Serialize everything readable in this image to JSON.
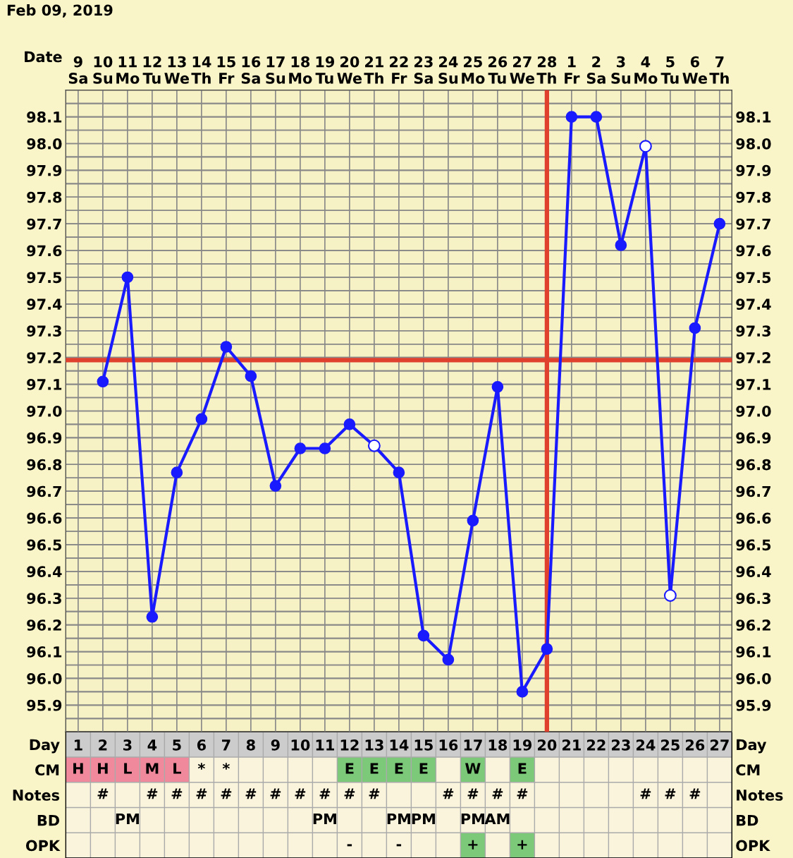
{
  "chart_data": [
    {
      "type": "line",
      "title": "Feb 09, 2019",
      "xlabel": "Date",
      "categories": [
        "9\nSa",
        "10\nSu",
        "11\nMo",
        "12\nTu",
        "13\nWe",
        "14\nTh",
        "15\nFr",
        "16\nSa",
        "17\nSu",
        "18\nMo",
        "19\nTu",
        "20\nWe",
        "21\nTh",
        "22\nFr",
        "23\nSa",
        "24\nSu",
        "25\nMo",
        "26\nTu",
        "27\nWe",
        "28\nTh",
        "1\nFr",
        "2\nSa",
        "3\nSu",
        "4\nMo",
        "5\nTu",
        "6\nWe",
        "7\nTh"
      ],
      "series": [
        {
          "type": "line",
          "color": "#1a1aff",
          "marker": "circle",
          "line_style": "solid",
          "values": [
            null,
            97.11,
            97.5,
            96.23,
            96.77,
            96.97,
            97.24,
            97.13,
            96.72,
            96.86,
            96.86,
            96.95,
            96.87,
            96.77,
            96.16,
            96.07,
            96.59,
            97.09,
            95.95,
            96.11,
            98.1,
            98.1,
            97.62,
            97.99,
            96.31,
            97.31,
            97.7
          ]
        },
        {
          "type": "scatter",
          "color": "#ffffff",
          "marker": "circle",
          "values": [
            null,
            null,
            null,
            null,
            null,
            null,
            null,
            null,
            null,
            null,
            null,
            null,
            96.87,
            null,
            null,
            null,
            null,
            null,
            null,
            null,
            null,
            null,
            null,
            97.99,
            96.31,
            null,
            null
          ]
        }
      ],
      "ylim": [
        95.8,
        98.2
      ],
      "yticks": [
        {
          "value": 95.85,
          "label": null
        },
        95.9,
        {
          "value": 95.95,
          "label": null
        },
        {
          "value": 96.0,
          "label": "96.0"
        },
        {
          "value": 96.05,
          "label": null
        },
        96.1,
        {
          "value": 96.15,
          "label": null
        },
        96.2,
        {
          "value": 96.25,
          "label": null
        },
        96.3,
        {
          "value": 96.35,
          "label": null
        },
        96.4,
        {
          "value": 96.45,
          "label": null
        },
        96.5,
        {
          "value": 96.55,
          "label": null
        },
        96.6,
        {
          "value": 96.65,
          "label": null
        },
        96.7,
        {
          "value": 96.75,
          "label": null
        },
        96.8,
        {
          "value": 96.85,
          "label": null
        },
        96.9,
        {
          "value": 96.95,
          "label": null
        },
        {
          "value": 97.0,
          "label": "97.0"
        },
        {
          "value": 97.05,
          "label": null
        },
        97.1,
        {
          "value": 97.15,
          "label": null
        },
        97.2,
        {
          "value": 97.25,
          "label": null
        },
        97.3,
        {
          "value": 97.35,
          "label": null
        },
        97.4,
        {
          "value": 97.45,
          "label": null
        },
        97.5,
        {
          "value": 97.55,
          "label": null
        },
        97.6,
        {
          "value": 97.65,
          "label": null
        },
        97.7,
        {
          "value": 97.75,
          "label": null
        },
        97.8,
        {
          "value": 97.85,
          "label": null
        },
        97.9,
        {
          "value": 97.95,
          "label": null
        },
        {
          "value": 98.0,
          "label": "98.0"
        },
        {
          "value": 98.05,
          "label": null
        },
        98.1,
        {
          "value": 98.15,
          "label": null
        }
      ],
      "y2lim": [
        95.8,
        98.2
      ],
      "y2ticks": [
        {
          "value": 95.85,
          "label": null
        },
        95.9,
        {
          "value": 95.95,
          "label": null
        },
        {
          "value": 96.0,
          "label": "96.0"
        },
        {
          "value": 96.05,
          "label": null
        },
        96.1,
        {
          "value": 96.15,
          "label": null
        },
        96.2,
        {
          "value": 96.25,
          "label": null
        },
        96.3,
        {
          "value": 96.35,
          "label": null
        },
        96.4,
        {
          "value": 96.45,
          "label": null
        },
        96.5,
        {
          "value": 96.55,
          "label": null
        },
        96.6,
        {
          "value": 96.65,
          "label": null
        },
        96.7,
        {
          "value": 96.75,
          "label": null
        },
        96.8,
        {
          "value": 96.85,
          "label": null
        },
        96.9,
        {
          "value": 96.95,
          "label": null
        },
        {
          "value": 97.0,
          "label": "97.0"
        },
        {
          "value": 97.05,
          "label": null
        },
        97.1,
        {
          "value": 97.15,
          "label": null
        },
        97.2,
        {
          "value": 97.25,
          "label": null
        },
        97.3,
        {
          "value": 97.35,
          "label": null
        },
        97.4,
        {
          "value": 97.45,
          "label": null
        },
        97.5,
        {
          "value": 97.55,
          "label": null
        },
        97.6,
        {
          "value": 97.65,
          "label": null
        },
        97.7,
        {
          "value": 97.75,
          "label": null
        },
        97.8,
        {
          "value": 97.85,
          "label": null
        },
        97.9,
        {
          "value": 97.95,
          "label": null
        },
        {
          "value": 98.0,
          "label": "98.0"
        },
        {
          "value": 98.05,
          "label": null
        },
        98.1,
        {
          "value": 98.15,
          "label": null
        }
      ],
      "grid": true,
      "ref_lines": [
        {
          "axis": "y",
          "value": 97.19,
          "color": "#e0402e"
        },
        {
          "axis": "x",
          "value": "28\nTh",
          "color": "#e0402e"
        }
      ]
    },
    {
      "type": "heatmap",
      "categories": [
        "1",
        "2",
        "3",
        "4",
        "5",
        "6",
        "7",
        "8",
        "9",
        "10",
        "11",
        "12",
        "13",
        "14",
        "15",
        "16",
        "17",
        "18",
        "19",
        "20",
        "21",
        "22",
        "23",
        "24",
        "25",
        "26",
        "27"
      ],
      "y_categories": [
        "Day",
        "CM",
        "Notes",
        "BD",
        "OPK"
      ],
      "y2_categories": [
        "Day",
        "CM",
        "Notes",
        "BD",
        "OPK"
      ],
      "cells": [
        [
          null,
          null,
          null,
          null,
          null,
          null,
          null,
          null,
          null,
          null,
          null,
          null,
          null,
          null,
          null,
          null,
          null,
          null,
          null,
          null,
          null,
          null,
          null,
          null,
          null,
          null,
          null
        ],
        [
          null,
          null,
          null,
          null,
          null,
          null,
          null,
          null,
          null,
          null,
          null,
          null,
          null,
          null,
          null,
          null,
          null,
          null,
          null,
          null,
          null,
          null,
          null,
          null,
          null,
          null,
          null
        ],
        [
          null,
          null,
          null,
          null,
          null,
          null,
          null,
          null,
          null,
          null,
          null,
          null,
          null,
          null,
          null,
          null,
          null,
          null,
          null,
          null,
          null,
          null,
          null,
          null,
          null,
          null,
          null
        ],
        [
          null,
          null,
          null,
          null,
          null,
          null,
          null,
          null,
          null,
          null,
          null,
          null,
          null,
          null,
          null,
          null,
          null,
          null,
          null,
          null,
          null,
          null,
          null,
          null,
          null,
          null,
          null
        ],
        [
          null,
          null,
          null,
          null,
          null,
          null,
          null,
          null,
          null,
          null,
          null,
          null,
          null,
          null,
          null,
          null,
          null,
          null,
          null,
          null,
          null,
          null,
          null,
          null,
          null,
          null,
          null
        ]
      ],
      "cell_labels": [
        [
          null,
          null,
          null,
          null,
          null,
          null,
          null,
          null,
          null,
          null,
          null,
          null,
          null,
          null,
          null,
          null,
          null,
          null,
          null,
          null,
          null,
          null,
          null,
          null,
          null,
          null,
          null
        ],
        [
          "H",
          "H",
          "L",
          "M",
          "L",
          "*",
          "*",
          null,
          null,
          null,
          null,
          "E",
          "E",
          "E",
          "E",
          null,
          "W",
          null,
          "E",
          null,
          null,
          null,
          null,
          null,
          null,
          null,
          null
        ],
        [
          null,
          "#",
          null,
          "#",
          "#",
          "#",
          "#",
          "#",
          "#",
          "#",
          "#",
          "#",
          "#",
          null,
          null,
          "#",
          "#",
          "#",
          "#",
          null,
          null,
          null,
          null,
          "#",
          "#",
          "#",
          null
        ],
        [
          null,
          null,
          "PM",
          null,
          null,
          null,
          null,
          null,
          null,
          null,
          "PM",
          null,
          null,
          "PM",
          "PM",
          null,
          "PM",
          "AM",
          null,
          null,
          null,
          null,
          null,
          null,
          null,
          null,
          null
        ],
        [
          null,
          null,
          null,
          null,
          null,
          null,
          null,
          null,
          null,
          null,
          null,
          "-",
          null,
          "-",
          null,
          null,
          "+",
          null,
          "+",
          null,
          null,
          null,
          null,
          null,
          null,
          null,
          null
        ]
      ],
      "colors": [
        [
          "#cccccc",
          "#cccccc",
          "#cccccc",
          "#cccccc",
          "#cccccc",
          "#cccccc",
          "#cccccc",
          "#cccccc",
          "#cccccc",
          "#cccccc",
          "#cccccc",
          "#cccccc",
          "#cccccc",
          "#cccccc",
          "#cccccc",
          "#cccccc",
          "#cccccc",
          "#cccccc",
          "#cccccc",
          "#cccccc",
          "#cccccc",
          "#cccccc",
          "#cccccc",
          "#cccccc",
          "#cccccc",
          "#cccccc",
          "#cccccc"
        ],
        [
          "#f0899b",
          "#f0899b",
          "#f0899b",
          "#f0899b",
          "#f0899b",
          null,
          null,
          null,
          null,
          null,
          null,
          "#7dc97a",
          "#7dc97a",
          "#7dc97a",
          "#7dc97a",
          null,
          "#7dc97a",
          null,
          "#7dc97a",
          null,
          null,
          null,
          null,
          null,
          null,
          null,
          null
        ],
        [
          null,
          null,
          null,
          null,
          null,
          null,
          null,
          null,
          null,
          null,
          null,
          null,
          null,
          null,
          null,
          null,
          null,
          null,
          null,
          null,
          null,
          null,
          null,
          null,
          null,
          null,
          null
        ],
        [
          null,
          null,
          null,
          null,
          null,
          null,
          null,
          null,
          null,
          null,
          null,
          null,
          null,
          null,
          null,
          null,
          null,
          null,
          null,
          null,
          null,
          null,
          null,
          null,
          null,
          null,
          null
        ],
        [
          null,
          null,
          null,
          null,
          null,
          null,
          null,
          null,
          null,
          null,
          null,
          null,
          null,
          null,
          null,
          null,
          "#7dc97a",
          null,
          "#7dc97a",
          null,
          null,
          null,
          null,
          null,
          null,
          null,
          null
        ]
      ]
    }
  ]
}
